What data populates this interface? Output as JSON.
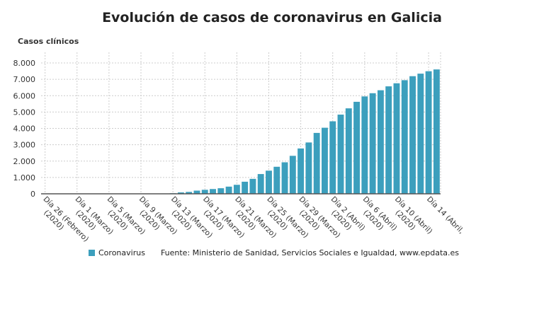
{
  "chart_data": {
    "type": "bar",
    "title": "Evolución de casos de coronavirus en Galicia",
    "ylabel": "Casos clínicos",
    "xlabel": "",
    "ylim": [
      0,
      8000
    ],
    "yticks": [
      "0",
      "1.000",
      "2.000",
      "3.000",
      "4.000",
      "5.000",
      "6.000",
      "7.000",
      "8.000"
    ],
    "grid": true,
    "color": "#3c9fbd",
    "xtick_labels": [
      "Día 26 (Febrero) (2020)",
      "Día 1 (Marzo) (2020)",
      "Día 5 (Marzo) (2020)",
      "Día 9 (Marzo) (2020)",
      "Día 13 (Marzo) (2020)",
      "Día 17 (Marzo) (2020)",
      "Día 21 (Marzo) (2020)",
      "Día 25 (Marzo) (2020)",
      "Día 29 (Marzo) (2020)",
      "Día 2 (Abril) (2020)",
      "Día 6 (Abril) (2020)",
      "Día 10 (Abril) (2020)",
      "Día 14 (Abril,"
    ],
    "series": [
      {
        "name": "Coronavirus",
        "values": [
          0,
          0,
          0,
          0,
          0,
          0,
          0,
          0,
          1,
          2,
          3,
          4,
          6,
          7,
          18,
          22,
          35,
          85,
          115,
          195,
          245,
          292,
          341,
          439,
          551,
          739,
          915,
          1208,
          1415,
          1653,
          1926,
          2322,
          2772,
          3139,
          3723,
          4039,
          4432,
          4842,
          5225,
          5625,
          5954,
          6150,
          6331,
          6570,
          6758,
          6946,
          7191,
          7346,
          7494,
          7603
        ]
      }
    ],
    "legend_position": "bottom",
    "source": "Fuente: Ministerio de Sanidad, Servicios Sociales e Igualdad, www.epdata.es"
  }
}
